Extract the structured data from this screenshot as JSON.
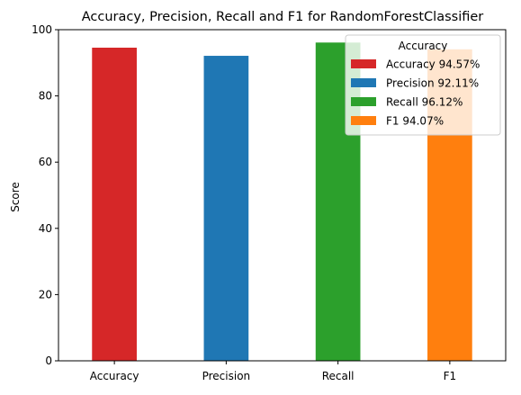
{
  "chart_data": {
    "type": "bar",
    "title": "Accuracy, Precision, Recall and F1 for RandomForestClassifier",
    "xlabel": "",
    "ylabel": "Score",
    "categories": [
      "Accuracy",
      "Precision",
      "Recall",
      "F1"
    ],
    "values": [
      94.57,
      92.11,
      96.12,
      94.07
    ],
    "colors": [
      "#d62728",
      "#1f77b4",
      "#2ca02c",
      "#ff7f0e"
    ],
    "ylim": [
      0,
      100
    ],
    "yticks": [
      0,
      20,
      40,
      60,
      80,
      100
    ],
    "grid": false,
    "legend": {
      "title": "Accuracy",
      "placement": "top-right",
      "entries": [
        "Accuracy 94.57%",
        "Precision 92.11%",
        "Recall 96.12%",
        "F1 94.07%"
      ]
    }
  }
}
